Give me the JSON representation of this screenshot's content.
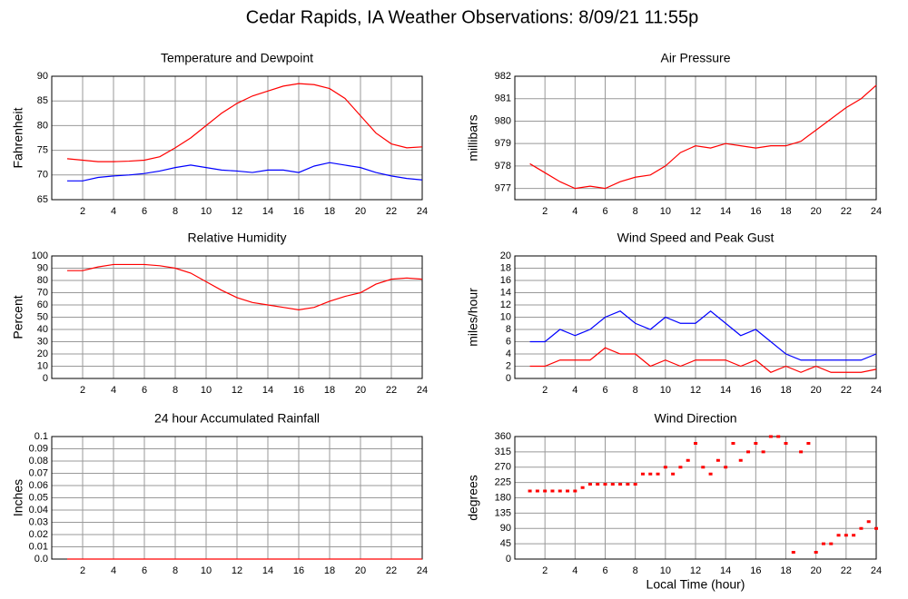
{
  "title": "Cedar Rapids, IA Weather Observations: 8/09/21 11:55p",
  "chart_data": [
    {
      "type": "line",
      "title": "Temperature and Dewpoint",
      "y_label": "Fahrenheit",
      "x": [
        1,
        2,
        3,
        4,
        5,
        6,
        7,
        8,
        9,
        10,
        11,
        12,
        13,
        14,
        15,
        16,
        17,
        18,
        19,
        20,
        21,
        22,
        23,
        24
      ],
      "series": [
        {
          "color": "#ff0000",
          "values": [
            73.3,
            73,
            72.7,
            72.7,
            72.8,
            73,
            73.7,
            75.5,
            77.5,
            80,
            82.5,
            84.5,
            86,
            87,
            88,
            88.5,
            88.3,
            87.5,
            85.5,
            82,
            78.5,
            76.3,
            75.5,
            75.7
          ]
        },
        {
          "color": "#0000ff",
          "values": [
            68.8,
            68.8,
            69.5,
            69.8,
            70,
            70.3,
            70.8,
            71.5,
            72,
            71.5,
            71,
            70.8,
            70.5,
            71,
            71,
            70.5,
            71.8,
            72.5,
            72,
            71.5,
            70.5,
            69.8,
            69.3,
            69
          ]
        }
      ],
      "xlim": [
        0,
        24
      ],
      "xticks": [
        2,
        4,
        6,
        8,
        10,
        12,
        14,
        16,
        18,
        20,
        22,
        24
      ],
      "ylim": [
        65,
        90
      ],
      "yticks": [
        65,
        70,
        75,
        80,
        85,
        90
      ],
      "grid": true
    },
    {
      "type": "line",
      "title": "Air Pressure",
      "y_label": "millibars",
      "x": [
        1,
        2,
        3,
        4,
        5,
        6,
        7,
        8,
        9,
        10,
        11,
        12,
        13,
        14,
        15,
        16,
        17,
        18,
        19,
        20,
        21,
        22,
        23,
        24
      ],
      "series": [
        {
          "color": "#ff0000",
          "values": [
            978.1,
            977.7,
            977.3,
            977,
            977.1,
            977,
            977.3,
            977.5,
            977.6,
            978,
            978.6,
            978.9,
            978.8,
            979,
            978.9,
            978.8,
            978.9,
            978.9,
            979.1,
            979.6,
            980.1,
            980.6,
            981,
            981.6
          ]
        }
      ],
      "xlim": [
        0,
        24
      ],
      "xticks": [
        2,
        4,
        6,
        8,
        10,
        12,
        14,
        16,
        18,
        20,
        22,
        24
      ],
      "ylim": [
        976.5,
        982
      ],
      "yticks": [
        977,
        978,
        979,
        980,
        981,
        982
      ],
      "grid": true
    },
    {
      "type": "line",
      "title": "Relative Humidity",
      "y_label": "Percent",
      "x": [
        1,
        2,
        3,
        4,
        5,
        6,
        7,
        8,
        9,
        10,
        11,
        12,
        13,
        14,
        15,
        16,
        17,
        18,
        19,
        20,
        21,
        22,
        23,
        24
      ],
      "series": [
        {
          "color": "#ff0000",
          "values": [
            88,
            88,
            91,
            93,
            93,
            93,
            92,
            90,
            86,
            79,
            72,
            66,
            62,
            60,
            58,
            56,
            58,
            63,
            67,
            70,
            77,
            81,
            82,
            81
          ]
        }
      ],
      "xlim": [
        0,
        24
      ],
      "xticks": [
        2,
        4,
        6,
        8,
        10,
        12,
        14,
        16,
        18,
        20,
        22,
        24
      ],
      "ylim": [
        0,
        100
      ],
      "yticks": [
        0,
        10,
        20,
        30,
        40,
        50,
        60,
        70,
        80,
        90,
        100
      ],
      "grid": true
    },
    {
      "type": "line",
      "title": "Wind Speed and Peak Gust",
      "y_label": "miles/hour",
      "x": [
        1,
        2,
        3,
        4,
        5,
        6,
        7,
        8,
        9,
        10,
        11,
        12,
        13,
        14,
        15,
        16,
        17,
        18,
        19,
        20,
        21,
        22,
        23,
        24
      ],
      "series": [
        {
          "color": "#0000ff",
          "values": [
            6,
            6,
            8,
            7,
            8,
            10,
            11,
            9,
            8,
            10,
            9,
            9,
            11,
            9,
            7,
            8,
            6,
            4,
            3,
            3,
            3,
            3,
            3,
            4
          ]
        },
        {
          "color": "#ff0000",
          "values": [
            2,
            2,
            3,
            3,
            3,
            5,
            4,
            4,
            2,
            3,
            2,
            3,
            3,
            3,
            2,
            3,
            1,
            2,
            1,
            2,
            1,
            1,
            1,
            1.5
          ]
        }
      ],
      "xlim": [
        0,
        24
      ],
      "xticks": [
        2,
        4,
        6,
        8,
        10,
        12,
        14,
        16,
        18,
        20,
        22,
        24
      ],
      "ylim": [
        0,
        20
      ],
      "yticks": [
        0,
        2,
        4,
        6,
        8,
        10,
        12,
        14,
        16,
        18,
        20
      ],
      "grid": true
    },
    {
      "type": "line",
      "title": "24 hour Accumulated Rainfall",
      "y_label": "Inches",
      "x": [
        1,
        24
      ],
      "series": [
        {
          "color": "#ff0000",
          "values": [
            0,
            0
          ]
        }
      ],
      "xlim": [
        0,
        24
      ],
      "xticks": [
        2,
        4,
        6,
        8,
        10,
        12,
        14,
        16,
        18,
        20,
        22,
        24
      ],
      "ylim": [
        0,
        0.1
      ],
      "yticks": [
        {
          "value": 0,
          "label": "0.0"
        },
        0.01,
        0.02,
        0.03,
        0.04,
        0.05,
        0.06,
        0.07,
        0.08,
        0.09,
        0.1
      ],
      "grid": true
    },
    {
      "type": "scatter",
      "title": "Wind Direction",
      "y_label": "degrees",
      "x_label": "Local Time (hour)",
      "x": [
        1,
        1.5,
        2,
        2.5,
        3,
        3.5,
        4,
        4.5,
        5,
        5.5,
        6,
        6.5,
        7,
        7.5,
        8,
        8.5,
        9,
        9.5,
        10,
        10.5,
        11,
        11.5,
        12,
        12.5,
        13,
        13.5,
        14,
        14.5,
        15,
        15.5,
        16,
        16.5,
        17,
        17.5,
        18,
        18.5,
        19,
        19.5,
        20,
        20.5,
        21,
        21.5,
        22,
        22.5,
        23,
        23.5,
        24
      ],
      "series": [
        {
          "color": "#ff0000",
          "values": [
            200,
            200,
            200,
            200,
            200,
            200,
            200,
            210,
            220,
            220,
            220,
            220,
            220,
            220,
            220,
            250,
            250,
            250,
            270,
            250,
            270,
            290,
            340,
            270,
            250,
            290,
            270,
            340,
            290,
            315,
            340,
            315,
            360,
            360,
            340,
            20,
            315,
            340,
            20,
            45,
            45,
            70,
            70,
            70,
            90,
            110,
            90
          ]
        }
      ],
      "xlim": [
        0,
        24
      ],
      "xticks": [
        2,
        4,
        6,
        8,
        10,
        12,
        14,
        16,
        18,
        20,
        22,
        24
      ],
      "ylim": [
        0,
        360
      ],
      "yticks": [
        0,
        45,
        90,
        135,
        180,
        225,
        270,
        315,
        360
      ],
      "grid": true
    }
  ]
}
